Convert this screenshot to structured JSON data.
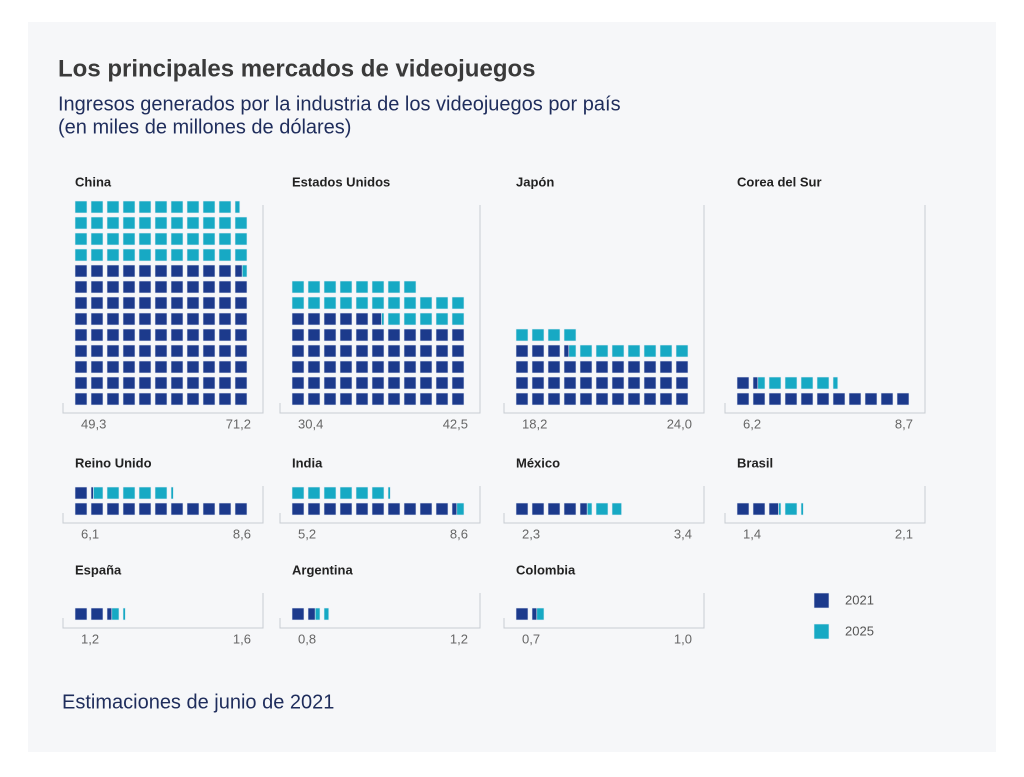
{
  "chart_data": {
    "type": "waffle",
    "title": "Los principales mercados de videojuegos",
    "subtitle": [
      "Ingresos generados por la industria de los videojuegos por país",
      "(en miles de millones de dólares)"
    ],
    "note": "Estimaciones de junio de 2021",
    "categories": [
      "China",
      "Estados Unidos",
      "Japón",
      "Corea del Sur",
      "Reino Unido",
      "India",
      "México",
      "Brasil",
      "España",
      "Argentina",
      "Colombia"
    ],
    "series": [
      {
        "name": "2021",
        "color": "#1c3a8c",
        "values": [
          49.3,
          30.4,
          18.2,
          6.2,
          6.1,
          5.2,
          2.3,
          1.4,
          1.2,
          0.8,
          0.7
        ],
        "value_labels": [
          "49,3",
          "30,4",
          "18,2",
          "6,2",
          "6,1",
          "5,2",
          "2,3",
          "1,4",
          "1,2",
          "0,8",
          "0,7"
        ]
      },
      {
        "name": "2025",
        "color": "#17a9c4",
        "values": [
          71.2,
          42.5,
          24.0,
          8.7,
          8.6,
          8.6,
          3.4,
          2.1,
          1.6,
          1.2,
          1.0
        ],
        "value_labels": [
          "71,2",
          "42,5",
          "24,0",
          "8,7",
          "8,6",
          "8,6",
          "3,4",
          "2,1",
          "1,6",
          "1,2",
          "1,0"
        ]
      }
    ]
  }
}
